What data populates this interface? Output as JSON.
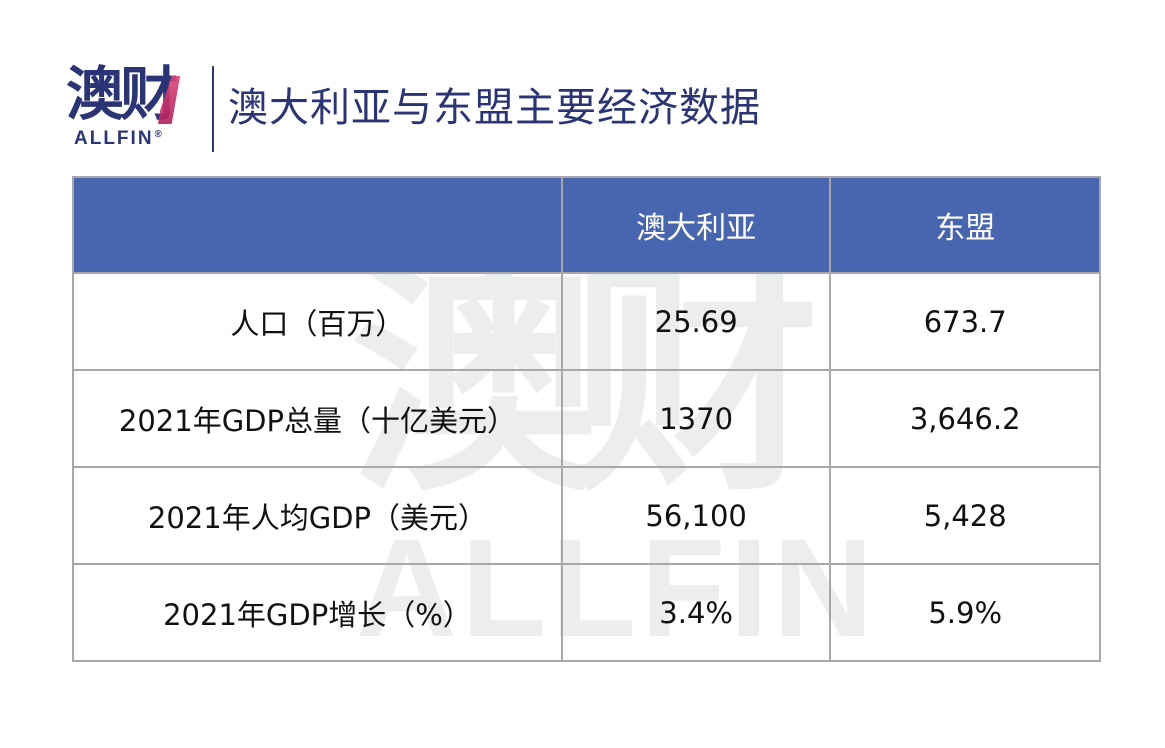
{
  "logo": {
    "chinese": "澳财",
    "english": "ALLFIN",
    "registered": "®",
    "brand_color": "#2b3576",
    "accent_color": "#d6336c"
  },
  "title": "澳大利亚与东盟主要经济数据",
  "watermark": {
    "chinese": "澳财",
    "english": "ALLFIN"
  },
  "table": {
    "header_color": "#4260ac",
    "border_color": "#a8a8a8",
    "columns": [
      "",
      "澳大利亚",
      "东盟"
    ],
    "rows": [
      {
        "label": "人口（百万）",
        "australia": "25.69",
        "asean": "673.7"
      },
      {
        "label": "2021年GDP总量（十亿美元）",
        "australia": "1370",
        "asean": "3,646.2"
      },
      {
        "label": "2021年人均GDP（美元）",
        "australia": "56,100",
        "asean": "5,428"
      },
      {
        "label": "2021年GDP增长（%）",
        "australia": "3.4%",
        "asean": "5.9%"
      }
    ]
  }
}
